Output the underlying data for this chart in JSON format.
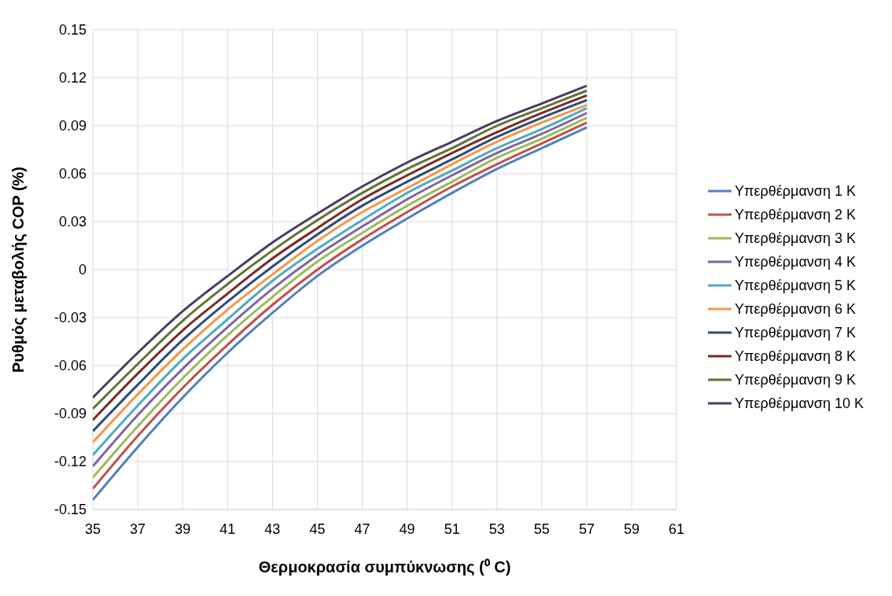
{
  "chart_data": {
    "type": "line",
    "xlabel": "Θερμοκρασία συμπύκνωσης (⁰ C)",
    "ylabel": "Ρυθμός μεταβολής COP (%)",
    "x": [
      35,
      37,
      39,
      41,
      43,
      45,
      47,
      49,
      51,
      53,
      55,
      57
    ],
    "series": [
      {
        "name": "Υπερθέρμανση 1 K",
        "color": "#4f81bd",
        "values": [
          -0.144,
          -0.111,
          -0.08,
          -0.052,
          -0.027,
          -0.004,
          0.015,
          0.032,
          0.048,
          0.063,
          0.076,
          0.089
        ]
      },
      {
        "name": "Υπερθέρμανση 2 K",
        "color": "#c0504d",
        "values": [
          -0.137,
          -0.104,
          -0.074,
          -0.047,
          -0.022,
          0.0,
          0.019,
          0.036,
          0.052,
          0.066,
          0.079,
          0.092
        ]
      },
      {
        "name": "Υπερθέρμανση 3 K",
        "color": "#9bbb59",
        "values": [
          -0.13,
          -0.098,
          -0.068,
          -0.041,
          -0.017,
          0.005,
          0.023,
          0.04,
          0.055,
          0.07,
          0.082,
          0.095
        ]
      },
      {
        "name": "Υπερθέρμανση 4 K",
        "color": "#8064a2",
        "values": [
          -0.123,
          -0.091,
          -0.062,
          -0.036,
          -0.012,
          0.009,
          0.027,
          0.044,
          0.059,
          0.073,
          0.085,
          0.098
        ]
      },
      {
        "name": "Υπερθέρμανση 5 K",
        "color": "#4bacc6",
        "values": [
          -0.116,
          -0.085,
          -0.056,
          -0.031,
          -0.007,
          0.013,
          0.031,
          0.048,
          0.062,
          0.076,
          0.088,
          0.101
        ]
      },
      {
        "name": "Υπερθέρμανση 6 K",
        "color": "#f79646",
        "values": [
          -0.108,
          -0.078,
          -0.05,
          -0.025,
          -0.003,
          0.018,
          0.036,
          0.051,
          0.066,
          0.08,
          0.092,
          0.103
        ]
      },
      {
        "name": "Υπερθέρμανση 7 K",
        "color": "#2c4d75",
        "values": [
          -0.101,
          -0.072,
          -0.044,
          -0.02,
          0.002,
          0.022,
          0.04,
          0.055,
          0.069,
          0.083,
          0.095,
          0.106
        ]
      },
      {
        "name": "Υπερθέρμανση 8 K",
        "color": "#772c2a",
        "values": [
          -0.094,
          -0.065,
          -0.038,
          -0.015,
          0.007,
          0.026,
          0.044,
          0.059,
          0.073,
          0.086,
          0.098,
          0.109
        ]
      },
      {
        "name": "Υπερθέρμανση 9 K",
        "color": "#5f7530",
        "values": [
          -0.087,
          -0.059,
          -0.032,
          -0.009,
          0.012,
          0.031,
          0.048,
          0.063,
          0.076,
          0.09,
          0.101,
          0.112
        ]
      },
      {
        "name": "Υπερθέρμανση 10 K",
        "color": "#4d3b62",
        "values": [
          -0.08,
          -0.052,
          -0.026,
          -0.004,
          0.017,
          0.035,
          0.052,
          0.067,
          0.08,
          0.093,
          0.104,
          0.115
        ]
      }
    ],
    "xlim": [
      35,
      61
    ],
    "xticks": [
      35,
      37,
      39,
      41,
      43,
      45,
      47,
      49,
      51,
      53,
      55,
      57,
      59,
      61
    ],
    "ylim": [
      -0.15,
      0.15
    ],
    "yticks": [
      -0.15,
      -0.12,
      -0.09,
      -0.06,
      -0.03,
      0,
      0.03,
      0.06,
      0.09,
      0.12,
      0.15
    ],
    "grid": true,
    "legend": "right",
    "marker": "none",
    "line_style": "solid"
  }
}
